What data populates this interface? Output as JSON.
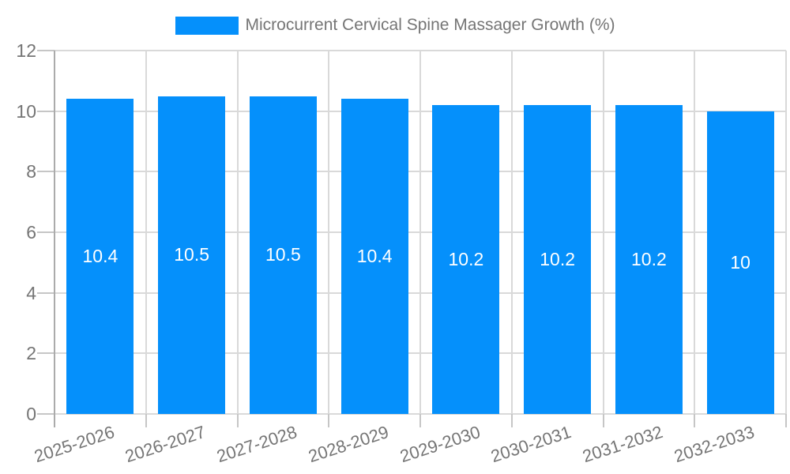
{
  "legend": {
    "label": "Microcurrent Cervical Spine Massager Growth (%)"
  },
  "chart_data": {
    "type": "bar",
    "title": "Microcurrent Cervical Spine Massager Growth (%)",
    "categories": [
      "2025-2026",
      "2026-2027",
      "2027-2028",
      "2028-2029",
      "2029-2030",
      "2030-2031",
      "2031-2032",
      "2032-2033"
    ],
    "values": [
      10.4,
      10.5,
      10.5,
      10.4,
      10.2,
      10.2,
      10.2,
      10
    ],
    "bar_labels": [
      "10.4",
      "10.5",
      "10.5",
      "10.4",
      "10.2",
      "10.2",
      "10.2",
      "10"
    ],
    "xlabel": "",
    "ylabel": "",
    "ylim": [
      0,
      12
    ],
    "yticks": [
      0,
      2,
      4,
      6,
      8,
      10,
      12
    ],
    "grid": true,
    "legend_position": "top-center",
    "colors": {
      "bar": "#0590fb",
      "bar_label": "#ffffff",
      "axis_text": "#757575",
      "gridline": "#d9d9d9",
      "axis_line": "#ababab",
      "tick": "#c6c6c6",
      "background": "#ffffff"
    }
  }
}
